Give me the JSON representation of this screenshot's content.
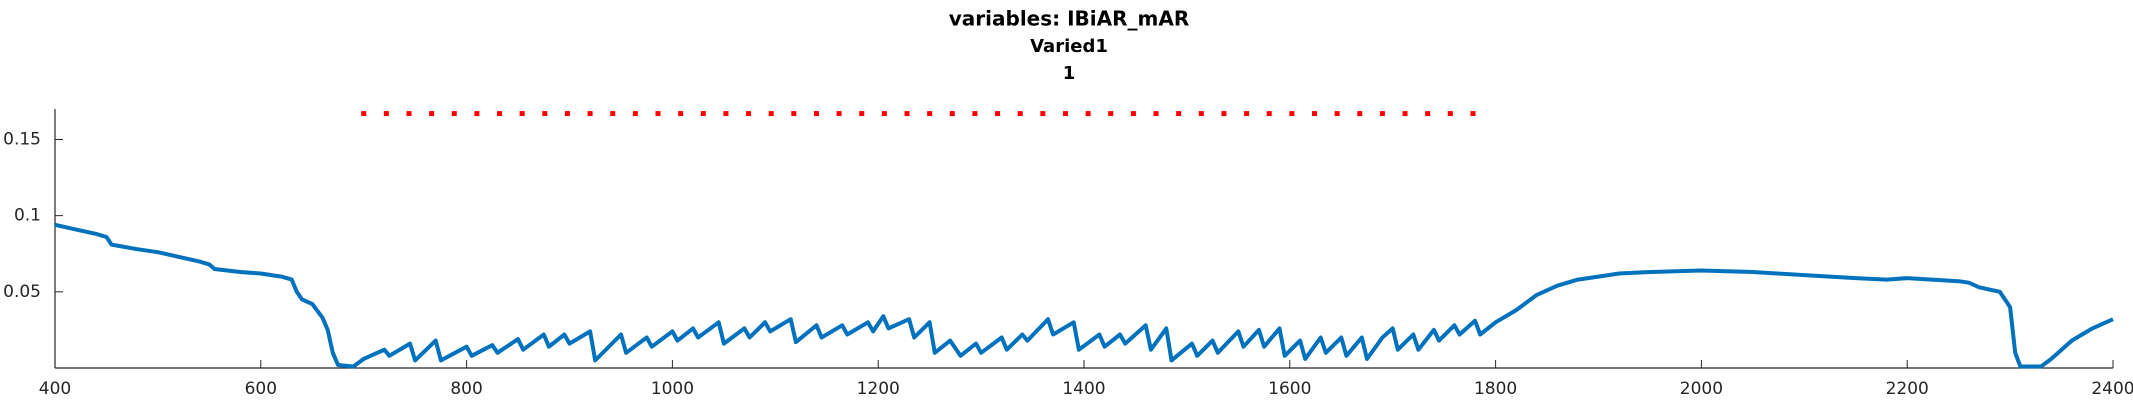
{
  "chart_data": {
    "type": "line",
    "title": "variables: IBiAR_mAR",
    "subtitle": "Varied1",
    "subtitle2": "1",
    "xlim": [
      400,
      2400
    ],
    "ylim": [
      0,
      0.17
    ],
    "xticks": [
      400,
      600,
      800,
      1000,
      1200,
      1400,
      1600,
      1800,
      2000,
      2200,
      2400
    ],
    "yticks": [
      0.05,
      0.1,
      0.15
    ],
    "series": [
      {
        "color": "#0072bd",
        "x": [
          400,
          420,
          440,
          450,
          455,
          480,
          500,
          520,
          540,
          550,
          555,
          580,
          600,
          620,
          630,
          635,
          640,
          650,
          660,
          665,
          670,
          675,
          690,
          700,
          720,
          725,
          745,
          750,
          770,
          775,
          800,
          805,
          825,
          830,
          850,
          855,
          875,
          880,
          895,
          900,
          920,
          925,
          950,
          955,
          975,
          980,
          1000,
          1005,
          1020,
          1025,
          1045,
          1050,
          1070,
          1075,
          1090,
          1095,
          1115,
          1120,
          1140,
          1145,
          1165,
          1170,
          1190,
          1195,
          1205,
          1210,
          1230,
          1235,
          1250,
          1255,
          1270,
          1280,
          1295,
          1300,
          1320,
          1325,
          1340,
          1345,
          1365,
          1370,
          1390,
          1395,
          1415,
          1420,
          1435,
          1440,
          1460,
          1465,
          1480,
          1485,
          1505,
          1510,
          1525,
          1530,
          1550,
          1555,
          1570,
          1575,
          1590,
          1595,
          1610,
          1615,
          1630,
          1635,
          1650,
          1655,
          1670,
          1675,
          1690,
          1700,
          1705,
          1720,
          1725,
          1740,
          1745,
          1760,
          1765,
          1780,
          1785,
          1800,
          1820,
          1840,
          1860,
          1880,
          1900,
          1920,
          1950,
          2000,
          2050,
          2100,
          2150,
          2180,
          2200,
          2250,
          2260,
          2270,
          2290,
          2300,
          2305,
          2310,
          2330,
          2340,
          2360,
          2380,
          2400
        ],
        "values": [
          0.094,
          0.091,
          0.088,
          0.086,
          0.081,
          0.078,
          0.076,
          0.073,
          0.07,
          0.068,
          0.065,
          0.063,
          0.062,
          0.06,
          0.058,
          0.05,
          0.045,
          0.042,
          0.033,
          0.025,
          0.01,
          0.002,
          0.001,
          0.006,
          0.012,
          0.008,
          0.016,
          0.005,
          0.018,
          0.005,
          0.014,
          0.008,
          0.015,
          0.01,
          0.019,
          0.012,
          0.022,
          0.014,
          0.022,
          0.016,
          0.024,
          0.005,
          0.022,
          0.01,
          0.02,
          0.014,
          0.024,
          0.018,
          0.026,
          0.02,
          0.03,
          0.016,
          0.026,
          0.02,
          0.03,
          0.024,
          0.032,
          0.017,
          0.028,
          0.02,
          0.028,
          0.022,
          0.03,
          0.024,
          0.034,
          0.026,
          0.032,
          0.02,
          0.03,
          0.01,
          0.018,
          0.008,
          0.016,
          0.01,
          0.02,
          0.012,
          0.022,
          0.018,
          0.032,
          0.022,
          0.03,
          0.012,
          0.022,
          0.014,
          0.022,
          0.016,
          0.028,
          0.012,
          0.026,
          0.005,
          0.016,
          0.008,
          0.018,
          0.01,
          0.024,
          0.014,
          0.025,
          0.014,
          0.026,
          0.008,
          0.018,
          0.006,
          0.02,
          0.01,
          0.02,
          0.008,
          0.02,
          0.006,
          0.02,
          0.026,
          0.012,
          0.022,
          0.012,
          0.025,
          0.018,
          0.028,
          0.022,
          0.031,
          0.022,
          0.03,
          0.038,
          0.048,
          0.054,
          0.058,
          0.06,
          0.062,
          0.063,
          0.064,
          0.063,
          0.061,
          0.059,
          0.058,
          0.059,
          0.057,
          0.056,
          0.053,
          0.05,
          0.04,
          0.01,
          0.001,
          0.001,
          0.006,
          0.018,
          0.026,
          0.032
        ]
      },
      {
        "color": "#ff0000",
        "marker": "dot",
        "x": [
          700,
          722,
          744,
          766,
          788,
          810,
          832,
          854,
          876,
          898,
          920,
          942,
          964,
          986,
          1008,
          1030,
          1052,
          1074,
          1096,
          1118,
          1140,
          1162,
          1184,
          1206,
          1228,
          1250,
          1272,
          1294,
          1316,
          1338,
          1360,
          1382,
          1404,
          1426,
          1448,
          1470,
          1492,
          1514,
          1536,
          1558,
          1580,
          1602,
          1624,
          1646,
          1668,
          1690,
          1712,
          1734,
          1756,
          1778
        ],
        "values": [
          0.167,
          0.167,
          0.167,
          0.167,
          0.167,
          0.167,
          0.167,
          0.167,
          0.167,
          0.167,
          0.167,
          0.167,
          0.167,
          0.167,
          0.167,
          0.167,
          0.167,
          0.167,
          0.167,
          0.167,
          0.167,
          0.167,
          0.167,
          0.167,
          0.167,
          0.167,
          0.167,
          0.167,
          0.167,
          0.167,
          0.167,
          0.167,
          0.167,
          0.167,
          0.167,
          0.167,
          0.167,
          0.167,
          0.167,
          0.167,
          0.167,
          0.167,
          0.167,
          0.167,
          0.167,
          0.167,
          0.167,
          0.167,
          0.167,
          0.167
        ]
      }
    ]
  }
}
